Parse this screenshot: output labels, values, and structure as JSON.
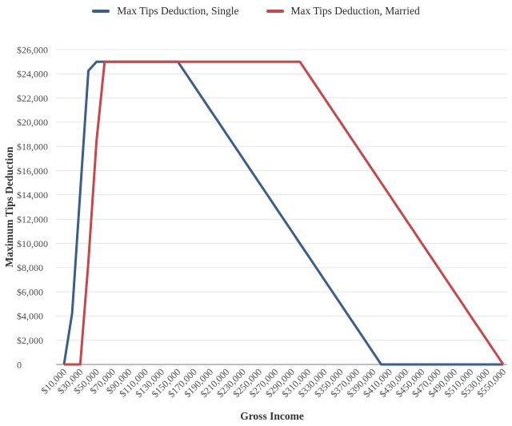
{
  "legend": {
    "position": "top"
  },
  "chart_data": {
    "type": "line",
    "title": "",
    "xlabel": "Gross Income",
    "ylabel": "Maximum Tips Deduction",
    "ylim": [
      0,
      26000
    ],
    "y_tick_step": 2000,
    "grid": "horizontal-only",
    "legend_position": "top-center",
    "grid_color": "#e6e6e6",
    "axis_color": "#a9a9a9",
    "tick_label_color": "#4c4c4c",
    "y_tick_labels": [
      "$26,000",
      "$24,000",
      "$22,000",
      "$20,000",
      "$18,000",
      "$16,000",
      "$14,000",
      "$12,000",
      "$10,000",
      "$8,000",
      "$6,000",
      "$4,000",
      "$2,000",
      "0"
    ],
    "x_tick_labels": [
      "$10,000",
      "$30,000",
      "$50,000",
      "$70,000",
      "$90,000",
      "$110,000",
      "$130,000",
      "$150,000",
      "$170,000",
      "$190,000",
      "$210,000",
      "$230,000",
      "$250,000",
      "$270,000",
      "$290,000",
      "$310,000",
      "$330,000",
      "$350,000",
      "$370,000",
      "$390,000",
      "$410,000",
      "$430,000",
      "$450,000",
      "$470,000",
      "$490,000",
      "$510,000",
      "$530,000",
      "$550,000"
    ],
    "x": [
      10000,
      20000,
      30000,
      40000,
      50000,
      60000,
      70000,
      80000,
      90000,
      100000,
      110000,
      120000,
      130000,
      140000,
      150000,
      160000,
      170000,
      180000,
      190000,
      200000,
      210000,
      220000,
      230000,
      240000,
      250000,
      260000,
      270000,
      280000,
      290000,
      300000,
      310000,
      320000,
      330000,
      340000,
      350000,
      360000,
      370000,
      380000,
      390000,
      400000,
      410000,
      420000,
      430000,
      440000,
      450000,
      460000,
      470000,
      480000,
      490000,
      500000,
      510000,
      520000,
      530000,
      540000,
      550000
    ],
    "series": [
      {
        "name": "Max Tips Deduction, Single",
        "color": "#3b5f88",
        "values": [
          0,
          4250,
          14250,
          24250,
          25000,
          25000,
          25000,
          25000,
          25000,
          25000,
          25000,
          25000,
          25000,
          25000,
          25000,
          24000,
          23000,
          22000,
          21000,
          20000,
          19000,
          18000,
          17000,
          16000,
          15000,
          14000,
          13000,
          12000,
          11000,
          10000,
          9000,
          8000,
          7000,
          6000,
          5000,
          4000,
          3000,
          2000,
          1000,
          0,
          0,
          0,
          0,
          0,
          0,
          0,
          0,
          0,
          0,
          0,
          0,
          0,
          0,
          0,
          0
        ]
      },
      {
        "name": "Max Tips Deduction, Married",
        "color": "#c5484b",
        "values": [
          0,
          0,
          0,
          8500,
          18500,
          25000,
          25000,
          25000,
          25000,
          25000,
          25000,
          25000,
          25000,
          25000,
          25000,
          25000,
          25000,
          25000,
          25000,
          25000,
          25000,
          25000,
          25000,
          25000,
          25000,
          25000,
          25000,
          25000,
          25000,
          25000,
          24000,
          23000,
          22000,
          21000,
          20000,
          19000,
          18000,
          17000,
          16000,
          15000,
          14000,
          13000,
          12000,
          11000,
          10000,
          9000,
          8000,
          7000,
          6000,
          5000,
          4000,
          3000,
          2000,
          1000,
          0
        ]
      }
    ]
  }
}
